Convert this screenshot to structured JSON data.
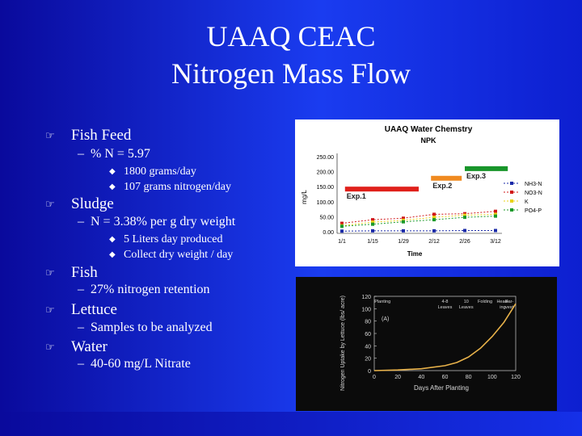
{
  "slide": {
    "title_line1": "UAAQ CEAC",
    "title_line2": "Nitrogen Mass Flow"
  },
  "bullets": {
    "fish_feed": {
      "label": "Fish Feed",
      "sub": "% N = 5.97",
      "items": [
        "1800 grams/day",
        "107 grams nitrogen/day"
      ]
    },
    "sludge": {
      "label": "Sludge",
      "sub": "N = 3.38% per g dry weight",
      "items": [
        "5 Liters day produced",
        "Collect dry weight / day"
      ]
    },
    "fish": {
      "label": "Fish",
      "sub": "27% nitrogen retention"
    },
    "lettuce": {
      "label": "Lettuce",
      "sub": "Samples to be analyzed"
    },
    "water": {
      "label": "Water",
      "sub": "40-60 mg/L Nitrate"
    }
  },
  "chart_data": [
    {
      "type": "line",
      "title": "UAAQ Water Chemstry",
      "subtitle": "NPK",
      "xlabel": "Time",
      "ylabel": "mg/L",
      "x": [
        "1/1",
        "1/15",
        "1/29",
        "2/12",
        "2/26",
        "3/12"
      ],
      "ylim": [
        0,
        250
      ],
      "yticks": [
        "250.00",
        "200.00",
        "150.00",
        "100.00",
        "50.00",
        "0.00"
      ],
      "grid": false,
      "legend_position": "right",
      "experiments": [
        {
          "label": "Exp.1",
          "color": "#e0201a",
          "x_start": 0.1,
          "x_end": 2.5,
          "y": 142
        },
        {
          "label": "Exp.2",
          "color": "#f08a20",
          "x_start": 2.9,
          "x_end": 3.9,
          "y": 178
        },
        {
          "label": "Exp.3",
          "color": "#18952a",
          "x_start": 4.0,
          "x_end": 5.4,
          "y": 210
        }
      ],
      "series": [
        {
          "name": "NH3-N",
          "color": "#1a2aa8",
          "values": [
            2,
            3,
            3,
            3,
            4,
            4
          ]
        },
        {
          "name": "NO3-N",
          "color": "#d01818",
          "values": [
            28,
            40,
            45,
            58,
            60,
            68
          ]
        },
        {
          "name": "K",
          "color": "#e8d21a",
          "values": [
            20,
            32,
            38,
            48,
            55,
            58
          ]
        },
        {
          "name": "PO4-P",
          "color": "#1c9a2a",
          "values": [
            18,
            25,
            33,
            40,
            48,
            52
          ]
        }
      ]
    },
    {
      "type": "line",
      "title": "(A)",
      "xlabel": "Days After Planting",
      "ylabel": "Nitrogen Uptake by Lettuce (lbs/ acre)",
      "x": [
        0,
        20,
        40,
        60,
        70,
        80,
        90,
        100,
        110,
        120
      ],
      "xticks": [
        "0",
        "20",
        "40",
        "60",
        "80",
        "100",
        "120"
      ],
      "ylim": [
        0,
        120
      ],
      "yticks": [
        "0",
        "20",
        "40",
        "60",
        "80",
        "100",
        "120"
      ],
      "stage_labels": [
        {
          "label": "Planting",
          "x": 7
        },
        {
          "label": "4-8 Leaves",
          "x": 60
        },
        {
          "label": "10 Leaves",
          "x": 78
        },
        {
          "label": "Folding",
          "x": 94
        },
        {
          "label": "Head-ing",
          "x": 109
        },
        {
          "label": "Har-vest",
          "x": 120
        }
      ],
      "series": [
        {
          "color": "#e8b24a",
          "values": [
            0,
            1,
            3,
            8,
            13,
            22,
            36,
            55,
            78,
            108
          ]
        }
      ]
    }
  ]
}
